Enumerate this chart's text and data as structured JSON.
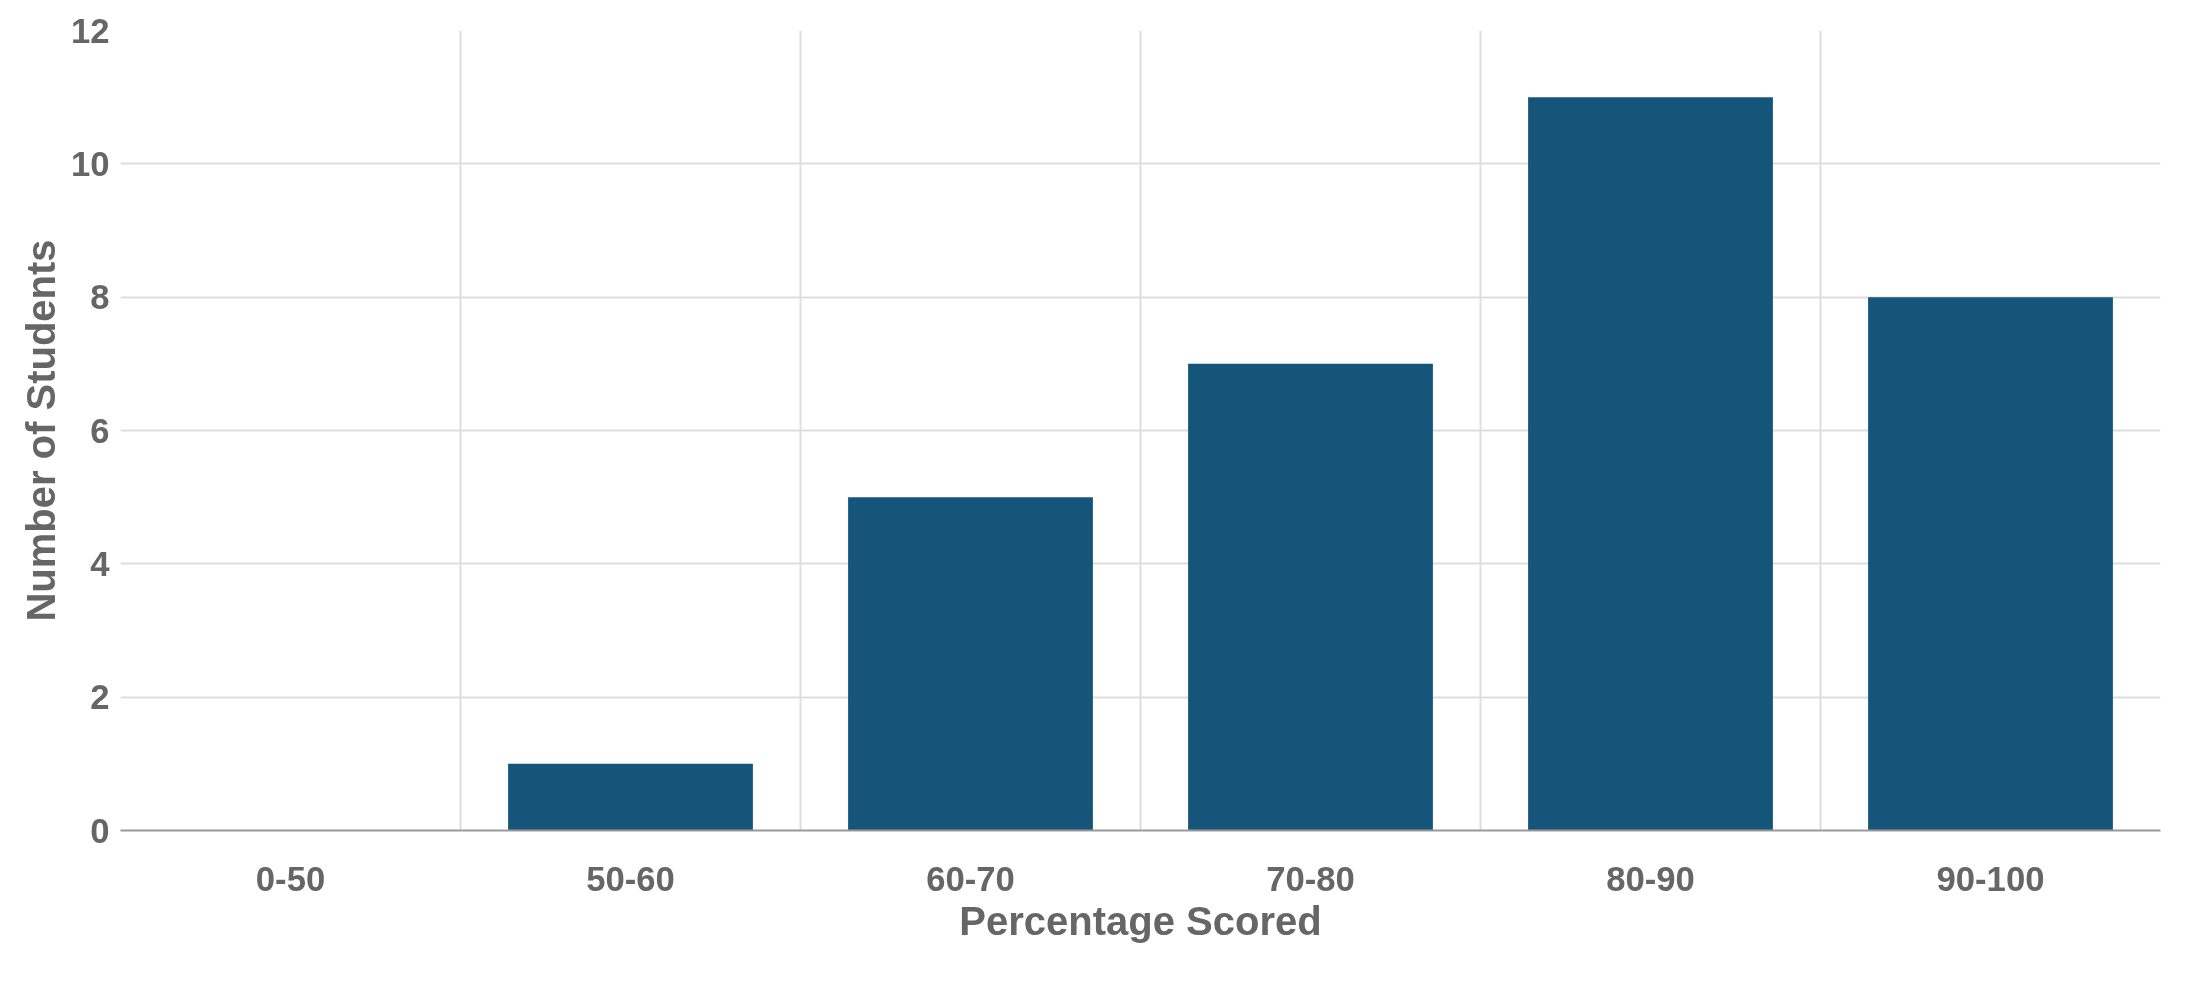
{
  "chart_data": {
    "type": "bar",
    "xlabel": "Percentage Scored",
    "ylabel": "Number of Students",
    "categories": [
      "0-50",
      "50-60",
      "60-70",
      "70-80",
      "80-90",
      "90-100"
    ],
    "values": [
      0,
      1,
      5,
      7,
      11,
      8
    ],
    "color": "#16557a",
    "ylim": [
      0,
      12
    ],
    "yticks": [
      0,
      2,
      4,
      6,
      8,
      10,
      12
    ],
    "grid": true
  }
}
